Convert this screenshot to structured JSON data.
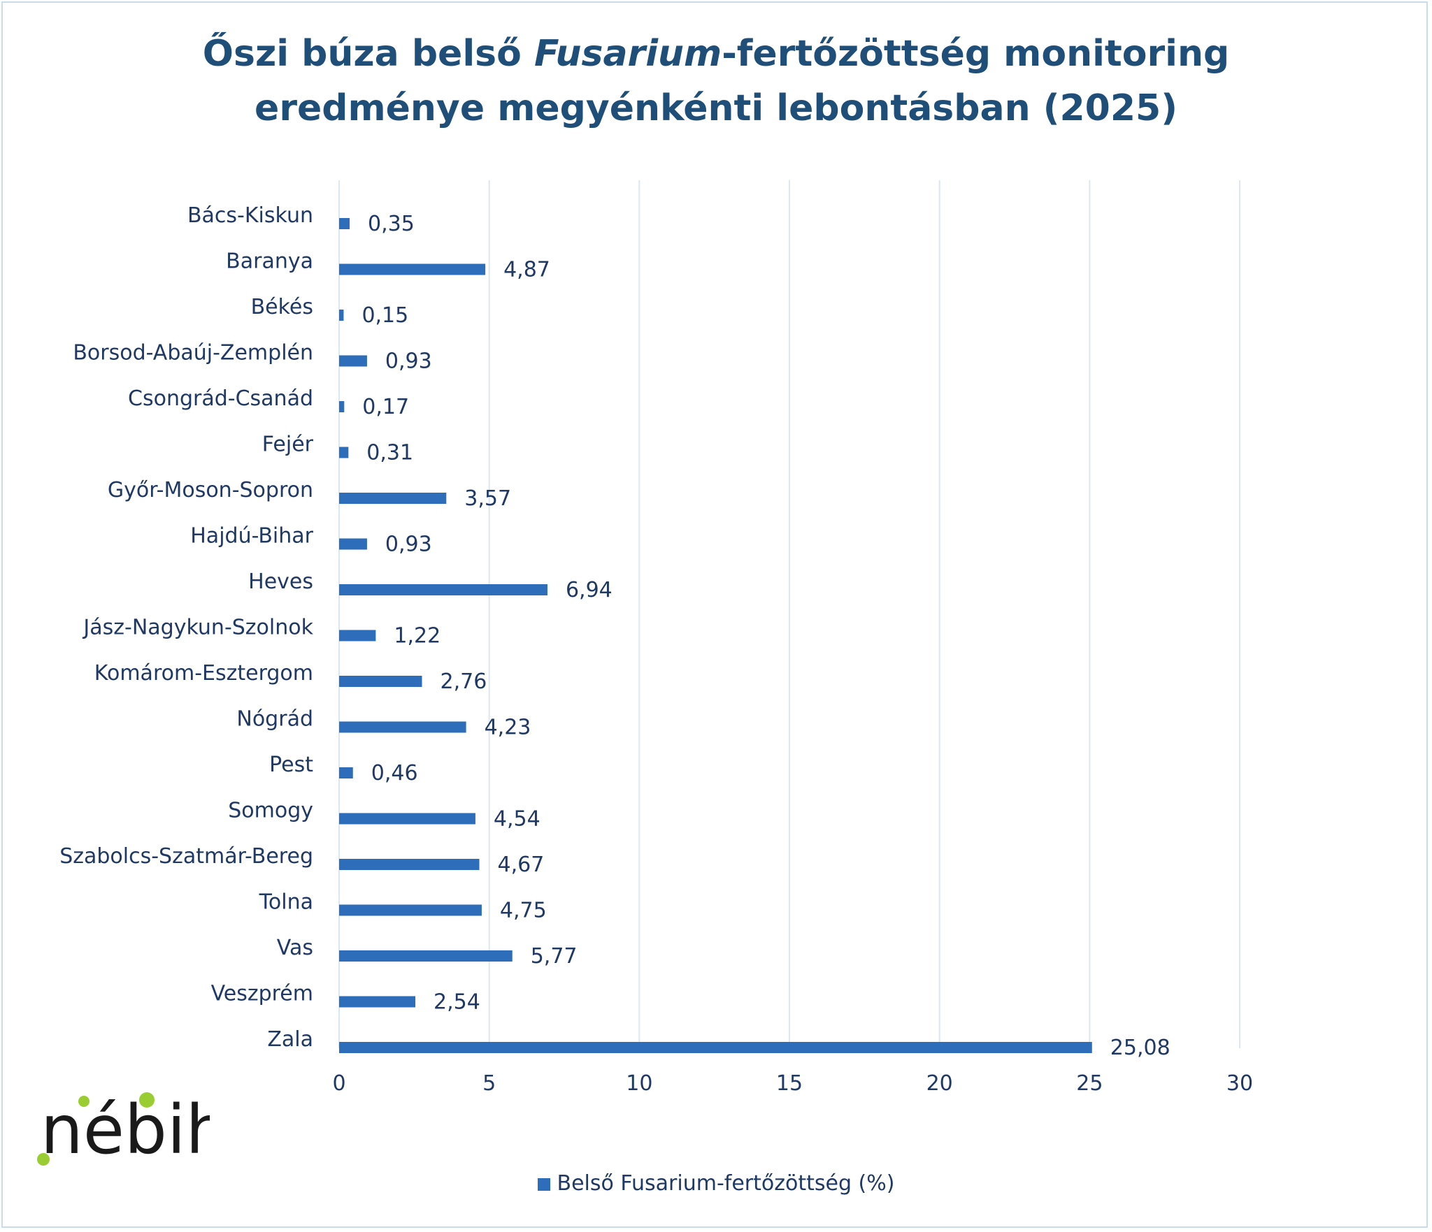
{
  "title_line1_before": "Őszi búza belső ",
  "title_line1_italic": "Fusarium",
  "title_line1_after": "-fertőzöttség monitoring",
  "title_line2": "eredménye megyénkénti lebontásban (2025)",
  "logo_text": "nébih",
  "legend_label": "Belső Fusarium-fertőzöttség (%)",
  "colors": {
    "bar": "#2e6db9",
    "gridline": "#dbe7f3",
    "text": "#1f3864",
    "title": "#1f4e79",
    "logo_dot": "#9acd32"
  },
  "chart_data": {
    "type": "bar",
    "orientation": "horizontal",
    "categories": [
      "Bács-Kiskun",
      "Baranya",
      "Békés",
      "Borsod-Abaúj-Zemplén",
      "Csongrád-Csanád",
      "Fejér",
      "Győr-Moson-Sopron",
      "Hajdú-Bihar",
      "Heves",
      "Jász-Nagykun-Szolnok",
      "Komárom-Esztergom",
      "Nógrád",
      "Pest",
      "Somogy",
      "Szabolcs-Szatmár-Bereg",
      "Tolna",
      "Vas",
      "Veszprém",
      "Zala"
    ],
    "series": [
      {
        "name": "Belső Fusarium-fertőzöttség (%)",
        "values": [
          0.35,
          4.87,
          0.15,
          0.93,
          0.17,
          0.31,
          3.57,
          0.93,
          6.94,
          1.22,
          2.76,
          4.23,
          0.46,
          4.54,
          4.67,
          4.75,
          5.77,
          2.54,
          25.08
        ],
        "labels": [
          "0,35",
          "4,87",
          "0,15",
          "0,93",
          "0,17",
          "0,31",
          "3,57",
          "0,93",
          "6,94",
          "1,22",
          "2,76",
          "4,23",
          "0,46",
          "4,54",
          "4,67",
          "4,75",
          "5,77",
          "2,54",
          "25,08"
        ]
      }
    ],
    "xlim": [
      0,
      30
    ],
    "xticks": [
      0,
      5,
      10,
      15,
      20,
      25,
      30
    ],
    "xtick_labels": [
      "0",
      "5",
      "10",
      "15",
      "20",
      "25",
      "30"
    ],
    "grid": "vertical",
    "legend_position": "bottom"
  }
}
